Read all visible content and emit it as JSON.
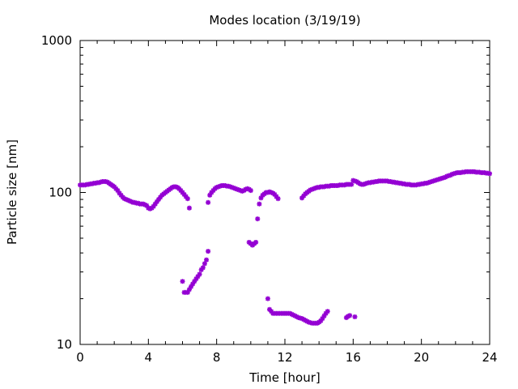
{
  "chart_data": {
    "type": "scatter",
    "title": "Modes location (3/19/19)",
    "xlabel": "Time [hour]",
    "ylabel": "Particle size [nm]",
    "xlim": [
      0,
      24
    ],
    "ylim": [
      10,
      1000
    ],
    "yscale": "log",
    "xticks": [
      0,
      4,
      8,
      12,
      16,
      20,
      24
    ],
    "yticks": [
      10,
      100,
      1000
    ],
    "grid": false,
    "legend": "none",
    "marker": "star",
    "color": "#9400d3",
    "series": [
      {
        "values": [
          [
            0.0,
            112
          ],
          [
            0.1,
            112
          ],
          [
            0.2,
            112
          ],
          [
            0.3,
            112
          ],
          [
            0.4,
            113
          ],
          [
            0.5,
            113
          ],
          [
            0.6,
            114
          ],
          [
            0.7,
            114
          ],
          [
            0.8,
            115
          ],
          [
            0.9,
            115
          ],
          [
            1.0,
            116
          ],
          [
            1.1,
            116
          ],
          [
            1.2,
            117
          ],
          [
            1.3,
            118
          ],
          [
            1.4,
            118
          ],
          [
            1.5,
            118
          ],
          [
            1.6,
            117
          ],
          [
            1.7,
            115
          ],
          [
            1.8,
            113
          ],
          [
            1.9,
            111
          ],
          [
            2.0,
            109
          ],
          [
            2.1,
            106
          ],
          [
            2.2,
            103
          ],
          [
            2.3,
            99
          ],
          [
            2.4,
            96
          ],
          [
            2.5,
            93
          ],
          [
            2.6,
            91
          ],
          [
            2.7,
            90
          ],
          [
            2.8,
            89
          ],
          [
            2.9,
            88
          ],
          [
            3.0,
            87
          ],
          [
            3.1,
            86
          ],
          [
            3.2,
            86
          ],
          [
            3.3,
            85
          ],
          [
            3.4,
            85
          ],
          [
            3.5,
            84
          ],
          [
            3.6,
            84
          ],
          [
            3.7,
            84
          ],
          [
            3.8,
            83
          ],
          [
            3.9,
            82
          ],
          [
            4.0,
            79
          ],
          [
            4.1,
            78
          ],
          [
            4.2,
            79
          ],
          [
            4.3,
            81
          ],
          [
            4.4,
            84
          ],
          [
            4.5,
            87
          ],
          [
            4.6,
            90
          ],
          [
            4.7,
            93
          ],
          [
            4.8,
            96
          ],
          [
            4.9,
            98
          ],
          [
            5.0,
            100
          ],
          [
            5.1,
            102
          ],
          [
            5.2,
            104
          ],
          [
            5.3,
            106
          ],
          [
            5.4,
            108
          ],
          [
            5.5,
            109
          ],
          [
            5.6,
            109
          ],
          [
            5.7,
            108
          ],
          [
            5.8,
            106
          ],
          [
            5.9,
            103
          ],
          [
            6.0,
            100
          ],
          [
            6.1,
            97
          ],
          [
            6.2,
            94
          ],
          [
            6.3,
            91
          ],
          [
            6.4,
            79
          ],
          [
            7.5,
            86
          ],
          [
            7.6,
            96
          ],
          [
            7.7,
            100
          ],
          [
            7.8,
            103
          ],
          [
            7.9,
            106
          ],
          [
            8.0,
            108
          ],
          [
            8.1,
            109
          ],
          [
            8.2,
            110
          ],
          [
            8.3,
            111
          ],
          [
            8.4,
            111
          ],
          [
            8.5,
            111
          ],
          [
            8.6,
            110
          ],
          [
            8.7,
            110
          ],
          [
            8.8,
            109
          ],
          [
            8.9,
            108
          ],
          [
            9.0,
            107
          ],
          [
            9.1,
            106
          ],
          [
            9.2,
            105
          ],
          [
            9.3,
            104
          ],
          [
            9.4,
            103
          ],
          [
            9.5,
            102
          ],
          [
            9.6,
            103
          ],
          [
            9.7,
            105
          ],
          [
            9.8,
            106
          ],
          [
            9.9,
            105
          ],
          [
            10.0,
            103
          ],
          [
            10.4,
            67
          ],
          [
            10.5,
            84
          ],
          [
            10.6,
            92
          ],
          [
            10.7,
            96
          ],
          [
            10.8,
            98
          ],
          [
            10.9,
            100
          ],
          [
            11.0,
            100
          ],
          [
            11.1,
            101
          ],
          [
            11.2,
            100
          ],
          [
            11.3,
            99
          ],
          [
            11.4,
            97
          ],
          [
            11.5,
            94
          ],
          [
            11.6,
            91
          ],
          [
            13.0,
            92
          ],
          [
            13.1,
            95
          ],
          [
            13.2,
            98
          ],
          [
            13.3,
            100
          ],
          [
            13.4,
            102
          ],
          [
            13.5,
            104
          ],
          [
            13.6,
            105
          ],
          [
            13.7,
            106
          ],
          [
            13.8,
            107
          ],
          [
            13.9,
            108
          ],
          [
            14.0,
            108
          ],
          [
            14.1,
            109
          ],
          [
            14.2,
            109
          ],
          [
            14.3,
            109
          ],
          [
            14.4,
            110
          ],
          [
            14.5,
            110
          ],
          [
            14.6,
            110
          ],
          [
            14.7,
            111
          ],
          [
            14.8,
            111
          ],
          [
            14.9,
            111
          ],
          [
            15.0,
            111
          ],
          [
            15.1,
            111
          ],
          [
            15.2,
            112
          ],
          [
            15.3,
            112
          ],
          [
            15.4,
            112
          ],
          [
            15.5,
            112
          ],
          [
            15.6,
            113
          ],
          [
            15.7,
            113
          ],
          [
            15.8,
            113
          ],
          [
            15.9,
            113
          ],
          [
            16.0,
            120
          ],
          [
            16.1,
            119
          ],
          [
            16.2,
            118
          ],
          [
            16.3,
            116
          ],
          [
            16.4,
            114
          ],
          [
            16.5,
            113
          ],
          [
            16.6,
            113
          ],
          [
            16.7,
            114
          ],
          [
            16.8,
            115
          ],
          [
            16.9,
            116
          ],
          [
            17.0,
            116
          ],
          [
            17.1,
            117
          ],
          [
            17.2,
            117
          ],
          [
            17.3,
            118
          ],
          [
            17.4,
            118
          ],
          [
            17.5,
            119
          ],
          [
            17.6,
            119
          ],
          [
            17.7,
            119
          ],
          [
            17.8,
            119
          ],
          [
            17.9,
            119
          ],
          [
            18.0,
            119
          ],
          [
            18.1,
            118
          ],
          [
            18.2,
            118
          ],
          [
            18.3,
            117
          ],
          [
            18.4,
            117
          ],
          [
            18.5,
            116
          ],
          [
            18.6,
            116
          ],
          [
            18.7,
            115
          ],
          [
            18.8,
            115
          ],
          [
            18.9,
            114
          ],
          [
            19.0,
            114
          ],
          [
            19.1,
            113
          ],
          [
            19.2,
            113
          ],
          [
            19.3,
            113
          ],
          [
            19.4,
            112
          ],
          [
            19.5,
            112
          ],
          [
            19.6,
            112
          ],
          [
            19.7,
            112
          ],
          [
            19.8,
            113
          ],
          [
            19.9,
            113
          ],
          [
            20.0,
            114
          ],
          [
            20.1,
            114
          ],
          [
            20.2,
            115
          ],
          [
            20.3,
            115
          ],
          [
            20.4,
            116
          ],
          [
            20.5,
            117
          ],
          [
            20.6,
            118
          ],
          [
            20.7,
            119
          ],
          [
            20.8,
            120
          ],
          [
            20.9,
            121
          ],
          [
            21.0,
            122
          ],
          [
            21.1,
            123
          ],
          [
            21.2,
            124
          ],
          [
            21.3,
            125
          ],
          [
            21.4,
            126
          ],
          [
            21.5,
            128
          ],
          [
            21.6,
            129
          ],
          [
            21.7,
            130
          ],
          [
            21.8,
            132
          ],
          [
            21.9,
            133
          ],
          [
            22.0,
            134
          ],
          [
            22.1,
            135
          ],
          [
            22.2,
            135
          ],
          [
            22.3,
            135
          ],
          [
            22.4,
            136
          ],
          [
            22.5,
            136
          ],
          [
            22.6,
            137
          ],
          [
            22.7,
            137
          ],
          [
            22.8,
            137
          ],
          [
            22.9,
            137
          ],
          [
            23.0,
            137
          ],
          [
            23.1,
            137
          ],
          [
            23.2,
            136
          ],
          [
            23.3,
            136
          ],
          [
            23.4,
            136
          ],
          [
            23.5,
            135
          ],
          [
            23.6,
            135
          ],
          [
            23.7,
            135
          ],
          [
            23.8,
            134
          ],
          [
            23.9,
            134
          ],
          [
            24.0,
            133
          ],
          [
            6.0,
            26
          ],
          [
            6.1,
            22
          ],
          [
            6.2,
            22
          ],
          [
            6.3,
            22
          ],
          [
            6.4,
            23
          ],
          [
            6.5,
            24
          ],
          [
            6.6,
            25
          ],
          [
            6.7,
            26
          ],
          [
            6.8,
            27
          ],
          [
            6.9,
            28
          ],
          [
            7.0,
            29
          ],
          [
            7.1,
            31
          ],
          [
            7.2,
            32
          ],
          [
            7.3,
            34
          ],
          [
            7.4,
            36
          ],
          [
            7.5,
            41
          ],
          [
            9.9,
            47
          ],
          [
            10.0,
            46
          ],
          [
            10.1,
            45
          ],
          [
            10.2,
            46
          ],
          [
            10.3,
            47
          ],
          [
            11.0,
            20
          ],
          [
            11.1,
            17
          ],
          [
            11.2,
            16.5
          ],
          [
            11.3,
            16
          ],
          [
            11.4,
            16
          ],
          [
            11.5,
            16
          ],
          [
            11.6,
            16
          ],
          [
            11.7,
            16
          ],
          [
            11.8,
            16
          ],
          [
            11.9,
            16
          ],
          [
            12.0,
            16
          ],
          [
            12.1,
            16
          ],
          [
            12.2,
            16
          ],
          [
            12.3,
            16
          ],
          [
            12.4,
            15.8
          ],
          [
            12.5,
            15.6
          ],
          [
            12.6,
            15.4
          ],
          [
            12.7,
            15.2
          ],
          [
            12.8,
            15
          ],
          [
            12.9,
            14.9
          ],
          [
            13.0,
            14.8
          ],
          [
            13.1,
            14.6
          ],
          [
            13.2,
            14.4
          ],
          [
            13.3,
            14.2
          ],
          [
            13.4,
            14
          ],
          [
            13.5,
            13.9
          ],
          [
            13.6,
            13.8
          ],
          [
            13.7,
            13.8
          ],
          [
            13.8,
            13.8
          ],
          [
            13.9,
            13.8
          ],
          [
            14.0,
            14
          ],
          [
            14.1,
            14.3
          ],
          [
            14.2,
            14.8
          ],
          [
            14.3,
            15.4
          ],
          [
            14.4,
            16
          ],
          [
            14.5,
            16.5
          ],
          [
            15.6,
            15
          ],
          [
            15.7,
            15.3
          ],
          [
            15.8,
            15.5
          ],
          [
            16.1,
            15.2
          ]
        ]
      }
    ]
  }
}
